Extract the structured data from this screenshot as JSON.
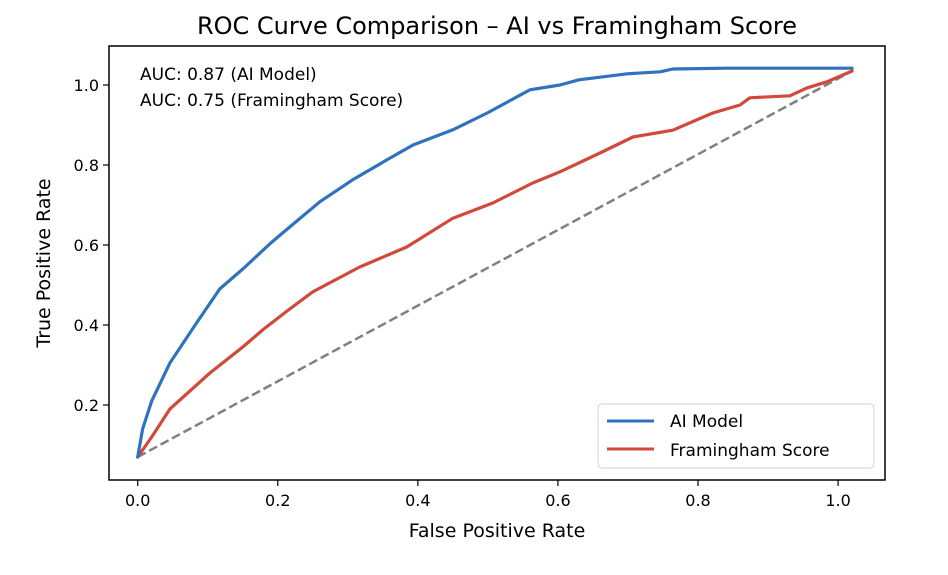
{
  "chart_data": {
    "type": "line",
    "title": "ROC Curve Comparison – AI vs Framingham Score",
    "xlabel": "False Positive Rate",
    "ylabel": "True Positive Rate",
    "xlim": [
      -0.041,
      1.067
    ],
    "ylim": [
      0.0125,
      1.0975
    ],
    "xticks": [
      0.0,
      0.2,
      0.4,
      0.6,
      0.8,
      1.0
    ],
    "xtick_labels": [
      "0.0",
      "0.2",
      "0.4",
      "0.6",
      "0.8",
      "1.0"
    ],
    "yticks": [
      0.2,
      0.4,
      0.6,
      0.8,
      1.0
    ],
    "ytick_labels": [
      "0.2",
      "0.4",
      "0.6",
      "0.8",
      "1.0"
    ],
    "grid": false,
    "legend_position": "bottom-right",
    "annotations": [
      "AUC: 0.87 (AI Model)",
      "AUC: 0.75 (Framingham Score)"
    ],
    "series": [
      {
        "name": "AI Model",
        "color": "#2e73bb",
        "style": "solid",
        "x": [
          0.0,
          0.007,
          0.02,
          0.046,
          0.084,
          0.117,
          0.15,
          0.19,
          0.217,
          0.26,
          0.307,
          0.356,
          0.393,
          0.45,
          0.499,
          0.56,
          0.603,
          0.63,
          0.699,
          0.746,
          0.764,
          0.84,
          1.02
        ],
        "y": [
          0.07,
          0.14,
          0.21,
          0.305,
          0.405,
          0.49,
          0.54,
          0.605,
          0.645,
          0.708,
          0.763,
          0.813,
          0.85,
          0.888,
          0.93,
          0.988,
          1.0,
          1.013,
          1.028,
          1.033,
          1.04,
          1.042,
          1.042
        ]
      },
      {
        "name": "Framingham Score",
        "color": "#d1493a",
        "style": "solid",
        "x": [
          0.0,
          0.02,
          0.046,
          0.103,
          0.15,
          0.18,
          0.217,
          0.25,
          0.317,
          0.384,
          0.45,
          0.507,
          0.564,
          0.603,
          0.66,
          0.707,
          0.764,
          0.821,
          0.86,
          0.874,
          0.931,
          0.956,
          0.984,
          1.02
        ],
        "y": [
          0.07,
          0.12,
          0.19,
          0.28,
          0.345,
          0.39,
          0.44,
          0.483,
          0.545,
          0.595,
          0.667,
          0.705,
          0.755,
          0.783,
          0.83,
          0.87,
          0.887,
          0.93,
          0.95,
          0.968,
          0.973,
          0.993,
          1.008,
          1.035
        ]
      },
      {
        "name": "Random (diagonal)",
        "color": "#808080",
        "style": "dashed",
        "in_legend": false,
        "x": [
          0.0,
          1.02
        ],
        "y": [
          0.07,
          1.035
        ]
      }
    ]
  }
}
